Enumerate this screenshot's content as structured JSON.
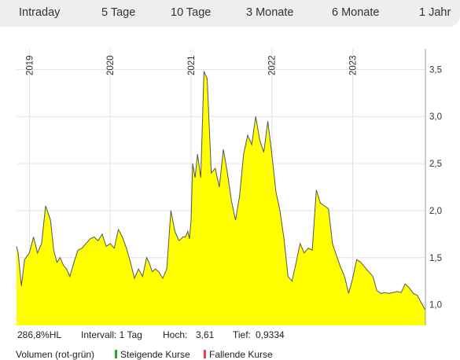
{
  "tabs": [
    {
      "label": "Intraday"
    },
    {
      "label": "5 Tage"
    },
    {
      "label": "10 Tage"
    },
    {
      "label": "3 Monate"
    },
    {
      "label": "6 Monate"
    },
    {
      "label": "1 Jahr"
    }
  ],
  "info": {
    "performance": "286,8%HL",
    "interval": "Intervall: 1 Tag",
    "high_label": "Hoch:",
    "high_value": "3,61",
    "low_label": "Tief:",
    "low_value": "0,9334"
  },
  "legend": {
    "volume": "Volumen (rot-grün)",
    "rising": "Steigende Kurse",
    "falling": "Fallende Kurse",
    "rising_color": "#22aa22",
    "falling_color": "#ee4444"
  },
  "chart_data": {
    "type": "area",
    "fill_color": "#ffff00",
    "line_color": "#555555",
    "x_ticks": [
      "2019",
      "2020",
      "2021",
      "2022",
      "2023"
    ],
    "y_ticks": [
      "1,0",
      "1,5",
      "2,0",
      "2,5",
      "3,0",
      "3,5"
    ],
    "y_tick_values": [
      1.0,
      1.5,
      2.0,
      2.5,
      3.0,
      3.5
    ],
    "ylim": [
      0.78,
      3.72
    ],
    "xlim": [
      2018.84,
      2023.9
    ],
    "grid": true,
    "series": [
      {
        "x": [
          2018.84,
          2018.86,
          2018.9,
          2018.94,
          2019.0,
          2019.05,
          2019.1,
          2019.15,
          2019.2,
          2019.26,
          2019.3,
          2019.34,
          2019.38,
          2019.42,
          2019.46,
          2019.5,
          2019.55,
          2019.6,
          2019.65,
          2019.7,
          2019.75,
          2019.8,
          2019.85,
          2019.9,
          2019.95,
          2020.0,
          2020.05,
          2020.1,
          2020.15,
          2020.2,
          2020.25,
          2020.3,
          2020.35,
          2020.4,
          2020.45,
          2020.48,
          2020.52,
          2020.56,
          2020.6,
          2020.65,
          2020.7,
          2020.75,
          2020.8,
          2020.85,
          2020.9,
          2020.93,
          2020.96,
          2020.98,
          2021.0,
          2021.02,
          2021.05,
          2021.08,
          2021.12,
          2021.16,
          2021.2,
          2021.25,
          2021.3,
          2021.35,
          2021.4,
          2021.45,
          2021.5,
          2021.55,
          2021.6,
          2021.65,
          2021.7,
          2021.75,
          2021.8,
          2021.85,
          2021.9,
          2021.95,
          2022.0,
          2022.05,
          2022.1,
          2022.15,
          2022.2,
          2022.25,
          2022.3,
          2022.35,
          2022.4,
          2022.45,
          2022.5,
          2022.55,
          2022.6,
          2022.65,
          2022.7,
          2022.75,
          2022.8,
          2022.85,
          2022.9,
          2022.95,
          2023.0,
          2023.05,
          2023.1,
          2023.15,
          2023.2,
          2023.25,
          2023.3,
          2023.35,
          2023.4,
          2023.45,
          2023.5,
          2023.55,
          2023.6,
          2023.65,
          2023.7,
          2023.75,
          2023.8,
          2023.85,
          2023.9
        ],
        "y": [
          1.62,
          1.55,
          1.2,
          1.48,
          1.55,
          1.72,
          1.55,
          1.65,
          2.05,
          1.9,
          1.58,
          1.45,
          1.5,
          1.42,
          1.38,
          1.3,
          1.45,
          1.58,
          1.6,
          1.65,
          1.7,
          1.72,
          1.68,
          1.75,
          1.62,
          1.65,
          1.6,
          1.8,
          1.72,
          1.6,
          1.45,
          1.28,
          1.38,
          1.3,
          1.5,
          1.45,
          1.35,
          1.38,
          1.35,
          1.28,
          1.38,
          2.0,
          1.78,
          1.68,
          1.72,
          1.72,
          1.78,
          1.7,
          1.9,
          2.5,
          2.35,
          2.6,
          2.35,
          3.48,
          3.4,
          2.4,
          2.45,
          2.25,
          2.65,
          2.4,
          2.1,
          1.9,
          2.15,
          2.6,
          2.8,
          2.7,
          3.0,
          2.75,
          2.62,
          2.95,
          2.6,
          2.2,
          2.0,
          1.7,
          1.3,
          1.25,
          1.45,
          1.65,
          1.55,
          1.6,
          1.58,
          2.22,
          2.08,
          2.05,
          2.02,
          1.65,
          1.52,
          1.4,
          1.3,
          1.12,
          1.28,
          1.48,
          1.45,
          1.4,
          1.35,
          1.3,
          1.15,
          1.12,
          1.13,
          1.12,
          1.13,
          1.14,
          1.13,
          1.22,
          1.18,
          1.12,
          1.1,
          1.02,
          0.94
        ]
      }
    ]
  }
}
